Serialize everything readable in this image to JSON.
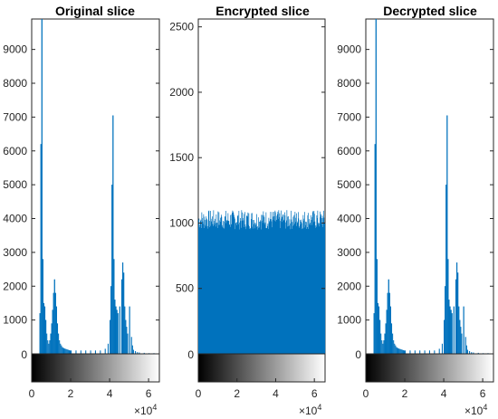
{
  "figure": {
    "background": "#ffffff",
    "bar_color": "#0072BD",
    "axis_color": "#262626",
    "x_exponent_prefix": "×10",
    "x_exponent_power": "4"
  },
  "chart_data": [
    {
      "type": "bar",
      "title": "Original slice",
      "xlabel": "",
      "ylabel": "",
      "xlim": [
        0,
        65535
      ],
      "ylim": [
        0,
        9900
      ],
      "yticks": [
        1000,
        2000,
        3000,
        4000,
        5000,
        6000,
        7000,
        8000,
        9000
      ],
      "ytick_labels": [
        "1000",
        "2000",
        "3000",
        "4000",
        "5000",
        "6000",
        "7000",
        "8000",
        "9000"
      ],
      "zero_label": "0",
      "xticks": [
        0,
        20000,
        40000,
        60000
      ],
      "xtick_labels": [
        "0",
        "2",
        "4",
        "6"
      ],
      "colorbar": "grayscale",
      "grid": false,
      "x": [
        0,
        500,
        1000,
        1500,
        2000,
        2500,
        3000,
        3500,
        4000,
        4500,
        5000,
        5500,
        6000,
        6500,
        7000,
        7500,
        8000,
        8500,
        9000,
        9500,
        10000,
        10500,
        11000,
        11500,
        12000,
        12500,
        13000,
        13500,
        14000,
        14500,
        15000,
        15500,
        16000,
        16500,
        17000,
        17500,
        18000,
        18500,
        19000,
        19500,
        20000,
        22500,
        25000,
        27500,
        30000,
        32500,
        35000,
        37500,
        39000,
        40000,
        40500,
        41000,
        41500,
        42000,
        42500,
        43000,
        43500,
        44000,
        45000,
        46000,
        46500,
        47000,
        47500,
        48000,
        48500,
        49000,
        50000,
        51000,
        51500,
        52000,
        53000,
        54000,
        55000,
        57500,
        60000,
        62500,
        65000
      ],
      "values": [
        0,
        0,
        0,
        0,
        0,
        0,
        0,
        0,
        1200,
        6200,
        9900,
        2800,
        1500,
        1400,
        1000,
        600,
        400,
        300,
        400,
        600,
        900,
        1300,
        1800,
        2200,
        1800,
        1400,
        900,
        600,
        400,
        300,
        250,
        200,
        180,
        160,
        150,
        140,
        130,
        120,
        110,
        100,
        100,
        100,
        100,
        100,
        100,
        100,
        100,
        150,
        300,
        1000,
        2000,
        5000,
        7050,
        2800,
        1600,
        1400,
        1300,
        1200,
        1400,
        2200,
        2700,
        2400,
        1400,
        1000,
        800,
        600,
        1400,
        500,
        250,
        120,
        80,
        50,
        40,
        30,
        20,
        20,
        0
      ]
    },
    {
      "type": "bar",
      "title": "Encrypted slice",
      "xlabel": "",
      "ylabel": "",
      "xlim": [
        0,
        65535
      ],
      "ylim": [
        0,
        2560
      ],
      "yticks": [
        500,
        1000,
        1500,
        2000,
        2500
      ],
      "ytick_labels": [
        "500",
        "1000",
        "1500",
        "2000",
        "2500"
      ],
      "zero_label": "0",
      "xticks": [
        0,
        20000,
        40000,
        60000
      ],
      "xtick_labels": [
        "0",
        "2",
        "4",
        "6"
      ],
      "colorbar": "grayscale",
      "grid": false,
      "uniform_level": 1000,
      "level_min": 950,
      "level_max": 1100
    },
    {
      "type": "bar",
      "title": "Decrypted slice",
      "xlabel": "",
      "ylabel": "",
      "xlim": [
        0,
        65535
      ],
      "ylim": [
        0,
        9900
      ],
      "yticks": [
        1000,
        2000,
        3000,
        4000,
        5000,
        6000,
        7000,
        8000,
        9000
      ],
      "ytick_labels": [
        "1000",
        "2000",
        "3000",
        "4000",
        "5000",
        "6000",
        "7000",
        "8000",
        "9000"
      ],
      "zero_label": "0",
      "xticks": [
        0,
        20000,
        40000,
        60000
      ],
      "xtick_labels": [
        "0",
        "2",
        "4",
        "6"
      ],
      "colorbar": "grayscale",
      "grid": false,
      "x": [
        0,
        500,
        1000,
        1500,
        2000,
        2500,
        3000,
        3500,
        4000,
        4500,
        5000,
        5500,
        6000,
        6500,
        7000,
        7500,
        8000,
        8500,
        9000,
        9500,
        10000,
        10500,
        11000,
        11500,
        12000,
        12500,
        13000,
        13500,
        14000,
        14500,
        15000,
        15500,
        16000,
        16500,
        17000,
        17500,
        18000,
        18500,
        19000,
        19500,
        20000,
        22500,
        25000,
        27500,
        30000,
        32500,
        35000,
        37500,
        39000,
        40000,
        40500,
        41000,
        41500,
        42000,
        42500,
        43000,
        43500,
        44000,
        45000,
        46000,
        46500,
        47000,
        47500,
        48000,
        48500,
        49000,
        50000,
        51000,
        51500,
        52000,
        53000,
        54000,
        55000,
        57500,
        60000,
        62500,
        65000
      ],
      "values": [
        0,
        0,
        0,
        0,
        0,
        0,
        0,
        0,
        1200,
        6200,
        9900,
        2800,
        1500,
        1400,
        1000,
        600,
        400,
        300,
        400,
        600,
        900,
        1300,
        1800,
        2200,
        1800,
        1400,
        900,
        600,
        400,
        300,
        250,
        200,
        180,
        160,
        150,
        140,
        130,
        120,
        110,
        100,
        100,
        100,
        100,
        100,
        100,
        100,
        100,
        150,
        300,
        1000,
        2000,
        5000,
        7050,
        2800,
        1600,
        1400,
        1300,
        1200,
        1400,
        2200,
        2700,
        2400,
        1400,
        1000,
        800,
        600,
        1400,
        500,
        250,
        120,
        80,
        50,
        40,
        30,
        20,
        20,
        0
      ]
    }
  ]
}
